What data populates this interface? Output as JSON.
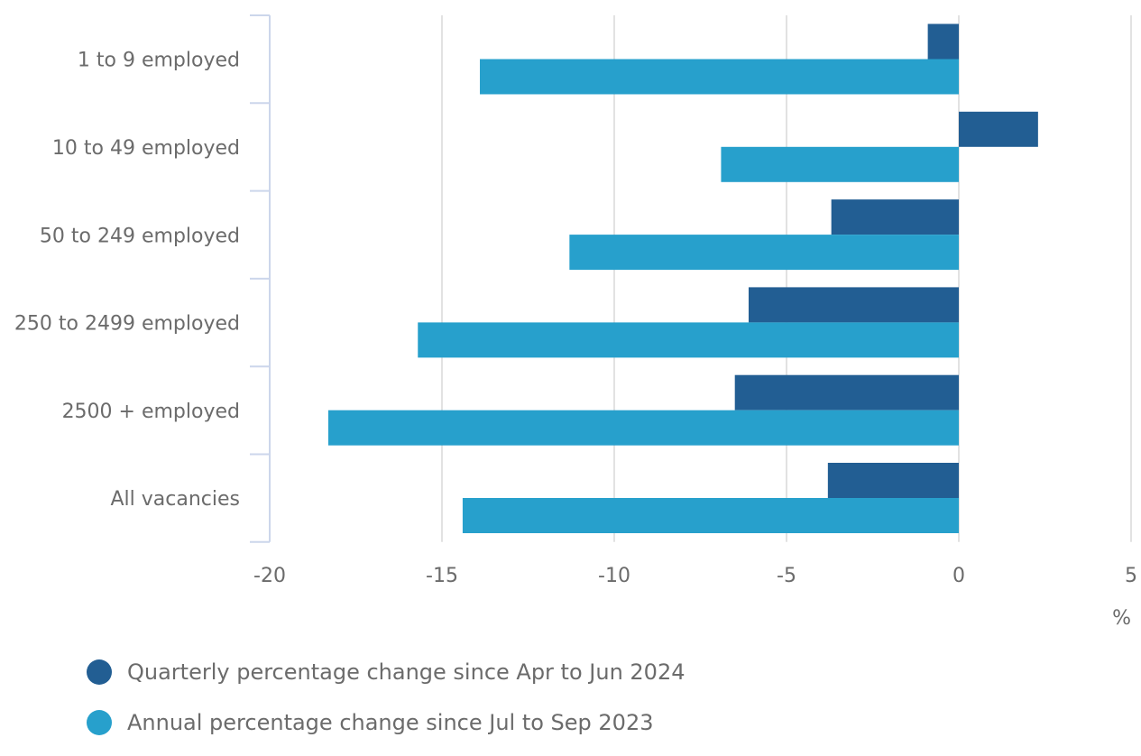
{
  "chart_data": {
    "type": "bar",
    "orientation": "horizontal",
    "categories": [
      "1 to 9 employed",
      "10 to 49 employed",
      "50 to 249 employed",
      "250 to 2499 employed",
      "2500 + employed",
      "All vacancies"
    ],
    "series": [
      {
        "name": "Quarterly percentage change since Apr to Jun 2024",
        "color": "#225e93",
        "values": [
          -0.9,
          2.3,
          -3.7,
          -6.1,
          -6.5,
          -3.8
        ]
      },
      {
        "name": "Annual percentage change since Jul to Sep 2023",
        "color": "#27a0cc",
        "values": [
          -13.9,
          -6.9,
          -11.3,
          -15.7,
          -18.3,
          -14.4
        ]
      }
    ],
    "xlim": [
      -20,
      5
    ],
    "xticks": [
      "-20",
      "-15",
      "-10",
      "-5",
      "0",
      "5"
    ],
    "xunit": "%",
    "grid": true,
    "legend_position": "bottom-left"
  }
}
